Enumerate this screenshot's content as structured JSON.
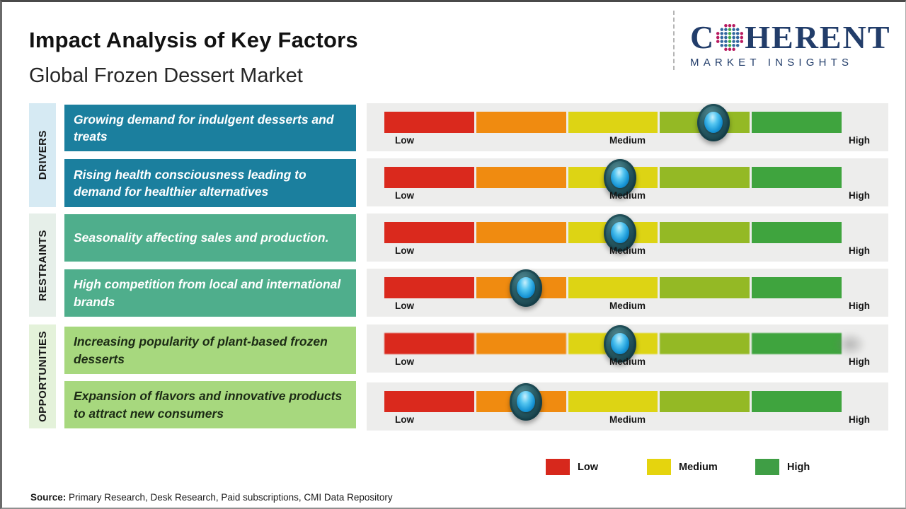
{
  "header": {
    "title": "Impact Analysis of Key Factors",
    "subtitle": "Global Frozen Dessert Market",
    "logo": {
      "brand_c": "C",
      "brand_rest": "HERENT",
      "tagline": "MARKET INSIGHTS",
      "color": "#223d6a"
    }
  },
  "categories": [
    {
      "label": "DRIVERS",
      "strip_color": "#d6eaf3",
      "box_color": "#1b7f9e"
    },
    {
      "label": "RESTRAINTS",
      "strip_color": "#e6efe9",
      "box_color": "#4fae8c"
    },
    {
      "label": "OPPORTUNITIES",
      "strip_color": "#e4f2da",
      "box_color": "#a7d87e"
    }
  ],
  "gauge": {
    "labels": {
      "low": "Low",
      "medium": "Medium",
      "high": "High"
    },
    "segment_colors": [
      "#da291d",
      "#f08b10",
      "#ddd414",
      "#94b925",
      "#3fa43e"
    ],
    "panel_color": "#ededec",
    "marker_colors": {
      "ring": "#16404a",
      "core": "#1593d4"
    }
  },
  "chart_data": {
    "type": "table",
    "title": "Impact Analysis of Key Factors",
    "subtitle": "Global Frozen Dessert Market",
    "scale": {
      "ticks": [
        "Low",
        "Medium",
        "High"
      ],
      "segments": 5,
      "range": [
        0,
        1
      ]
    },
    "rows": [
      {
        "category": "DRIVERS",
        "factor": "Growing demand for indulgent desserts and treats",
        "impact_position": 0.72,
        "impact_level": "Medium-High"
      },
      {
        "category": "DRIVERS",
        "factor": "Rising health consciousness leading to demand for healthier alternatives",
        "impact_position": 0.515,
        "impact_level": "Medium"
      },
      {
        "category": "RESTRAINTS",
        "factor": "Seasonality affecting sales and production.",
        "impact_position": 0.515,
        "impact_level": "Medium"
      },
      {
        "category": "RESTRAINTS",
        "factor": "High competition from local and international brands",
        "impact_position": 0.31,
        "impact_level": "Low-Medium"
      },
      {
        "category": "OPPORTUNITIES",
        "factor": "Increasing popularity of plant-based frozen desserts",
        "impact_position": 0.515,
        "impact_level": "Medium"
      },
      {
        "category": "OPPORTUNITIES",
        "factor": "Expansion of flavors and innovative products to attract new consumers",
        "impact_position": 0.31,
        "impact_level": "Low-Medium"
      }
    ],
    "legend": [
      {
        "label": "Low",
        "color": "#d7281c"
      },
      {
        "label": "Medium",
        "color": "#e5d40e"
      },
      {
        "label": "High",
        "color": "#3f9e45"
      }
    ],
    "legend_position": "bottom"
  },
  "footer": {
    "source_label": "Source:",
    "source_text": " Primary Research, Desk Research, Paid subscriptions, CMI Data Repository"
  }
}
